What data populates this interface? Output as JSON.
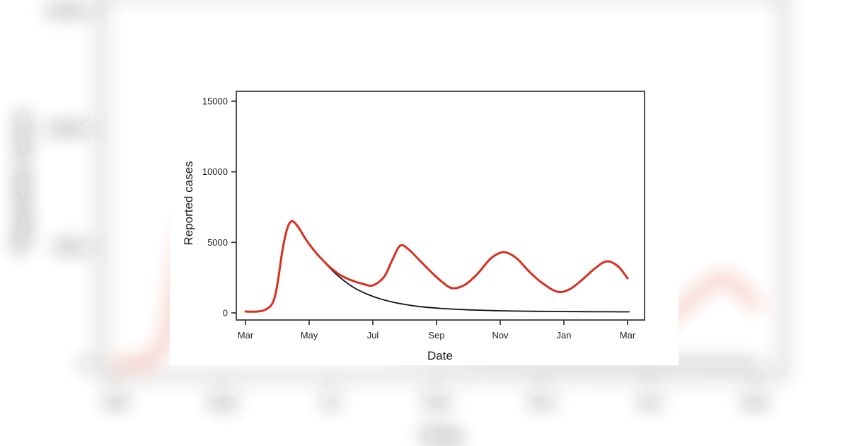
{
  "page": {
    "background_color": "#ffffff",
    "card_color": "#ffffff",
    "description_of_background": "blurred enlarged copy of the same chart behind a sharp white card"
  },
  "chart_data": {
    "type": "line",
    "title": "",
    "xlabel": "Date",
    "ylabel": "Reported cases",
    "x_ticks": [
      "Mar",
      "May",
      "Jul",
      "Sep",
      "Nov",
      "Jan",
      "Mar"
    ],
    "y_ticks": [
      0,
      5000,
      10000,
      15000
    ],
    "x_unit": "months since first Mar tick (tick spacing = 2 months)",
    "ylim": [
      0,
      15700
    ],
    "grid": "off",
    "legend": "none",
    "axis_color": "#3d3d3d",
    "text_color": "#1f1f1f",
    "series": [
      {
        "name": "black-line-declining-epidemic",
        "color": "#111111",
        "width": 1.8,
        "points": [
          [
            0,
            100
          ],
          [
            0.3,
            90
          ],
          [
            0.6,
            200
          ],
          [
            0.85,
            700
          ],
          [
            1.0,
            2000
          ],
          [
            1.15,
            4300
          ],
          [
            1.3,
            5900
          ],
          [
            1.45,
            6500
          ],
          [
            1.65,
            6100
          ],
          [
            1.9,
            5200
          ],
          [
            2.2,
            4300
          ],
          [
            2.6,
            3300
          ],
          [
            3.0,
            2450
          ],
          [
            3.4,
            1800
          ],
          [
            3.8,
            1350
          ],
          [
            4.2,
            1020
          ],
          [
            4.6,
            780
          ],
          [
            5.0,
            600
          ],
          [
            5.5,
            440
          ],
          [
            6.0,
            340
          ],
          [
            6.5,
            270
          ],
          [
            7.0,
            215
          ],
          [
            7.5,
            180
          ],
          [
            8.0,
            150
          ],
          [
            8.5,
            130
          ],
          [
            9.0,
            115
          ],
          [
            9.5,
            105
          ],
          [
            10.0,
            95
          ],
          [
            10.5,
            88
          ],
          [
            11.0,
            82
          ],
          [
            11.5,
            78
          ],
          [
            12.05,
            75
          ]
        ]
      },
      {
        "name": "red-line-recurring-waves",
        "color": "#d8301f",
        "width": 3,
        "points": [
          [
            0,
            100
          ],
          [
            0.3,
            90
          ],
          [
            0.6,
            200
          ],
          [
            0.85,
            700
          ],
          [
            1.0,
            2000
          ],
          [
            1.15,
            4300
          ],
          [
            1.3,
            5900
          ],
          [
            1.45,
            6500
          ],
          [
            1.65,
            6100
          ],
          [
            1.9,
            5200
          ],
          [
            2.2,
            4300
          ],
          [
            2.6,
            3350
          ],
          [
            3.0,
            2650
          ],
          [
            3.4,
            2250
          ],
          [
            3.7,
            2050
          ],
          [
            4.0,
            1950
          ],
          [
            4.35,
            2550
          ],
          [
            4.6,
            3700
          ],
          [
            4.85,
            4750
          ],
          [
            5.1,
            4550
          ],
          [
            5.5,
            3650
          ],
          [
            5.9,
            2750
          ],
          [
            6.2,
            2150
          ],
          [
            6.5,
            1750
          ],
          [
            6.9,
            2000
          ],
          [
            7.3,
            2800
          ],
          [
            7.7,
            3850
          ],
          [
            8.1,
            4300
          ],
          [
            8.5,
            3900
          ],
          [
            8.9,
            2950
          ],
          [
            9.3,
            2150
          ],
          [
            9.8,
            1500
          ],
          [
            10.2,
            1700
          ],
          [
            10.6,
            2400
          ],
          [
            11.0,
            3200
          ],
          [
            11.35,
            3650
          ],
          [
            11.7,
            3300
          ],
          [
            12.0,
            2450
          ]
        ]
      }
    ]
  }
}
